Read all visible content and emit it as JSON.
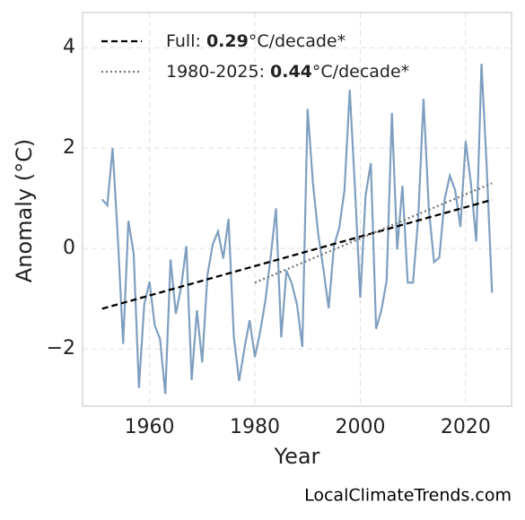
{
  "chart_data": {
    "type": "line",
    "x_label": "Year",
    "y_label": "Anomaly (°C)",
    "source": "LocalClimateTrends.com",
    "x": [
      1951,
      1952,
      1953,
      1954,
      1955,
      1956,
      1957,
      1958,
      1959,
      1960,
      1961,
      1962,
      1963,
      1964,
      1965,
      1966,
      1967,
      1968,
      1969,
      1970,
      1971,
      1972,
      1973,
      1974,
      1975,
      1976,
      1977,
      1978,
      1979,
      1980,
      1981,
      1982,
      1983,
      1984,
      1985,
      1986,
      1987,
      1988,
      1989,
      1990,
      1991,
      1992,
      1993,
      1994,
      1995,
      1996,
      1997,
      1998,
      1999,
      2000,
      2001,
      2002,
      2003,
      2004,
      2005,
      2006,
      2007,
      2008,
      2009,
      2010,
      2011,
      2012,
      2013,
      2014,
      2015,
      2016,
      2017,
      2018,
      2019,
      2020,
      2021,
      2022,
      2023,
      2024,
      2025
    ],
    "series": [
      {
        "color": "#7f9fc0",
        "values": [
          0.98,
          0.86,
          2.0,
          0.2,
          -1.9,
          0.55,
          -0.1,
          -2.78,
          -1.12,
          -0.66,
          -1.53,
          -1.8,
          -2.9,
          -0.22,
          -1.3,
          -0.77,
          0.05,
          -2.62,
          -1.23,
          -2.27,
          -0.53,
          0.08,
          0.34,
          -0.2,
          0.59,
          -1.75,
          -2.64,
          -2.0,
          -1.43,
          -2.16,
          -1.66,
          -1.03,
          -0.16,
          0.8,
          -1.77,
          -0.44,
          -0.7,
          -1.12,
          -1.96,
          2.78,
          1.32,
          0.3,
          -0.41,
          -1.19,
          0.05,
          0.41,
          1.16,
          3.16,
          1.18,
          -0.98,
          1.05,
          1.7,
          -1.6,
          -1.23,
          -0.64,
          2.7,
          -0.02,
          1.25,
          -0.68,
          -0.68,
          0.62,
          2.98,
          0.79,
          -0.27,
          -0.18,
          0.98,
          1.45,
          1.16,
          0.43,
          2.14,
          1.29,
          0.14,
          3.68,
          1.6,
          -0.88
        ]
      },
      {
        "name": "Full: ",
        "slope": "0.29",
        "unit": "°C/decade*",
        "color": "#000000",
        "dash": "dashed",
        "x": [
          1951,
          2025
        ],
        "values": [
          -1.2,
          0.97
        ]
      },
      {
        "name": "1980-2025: ",
        "slope": "0.44",
        "unit": "°C/decade*",
        "color": "#777777",
        "dash": "dotted",
        "x": [
          1980,
          2025
        ],
        "values": [
          -0.68,
          1.3
        ]
      }
    ],
    "xlim": [
      1947.3,
      2028.7
    ],
    "ylim": [
      -3.14,
      4.7
    ],
    "xticks": [
      1960,
      1980,
      2000,
      2020
    ],
    "yticks": [
      {
        "value": -2,
        "label": "−2"
      },
      0,
      2,
      4
    ],
    "grid": true,
    "legend": "upper left"
  }
}
